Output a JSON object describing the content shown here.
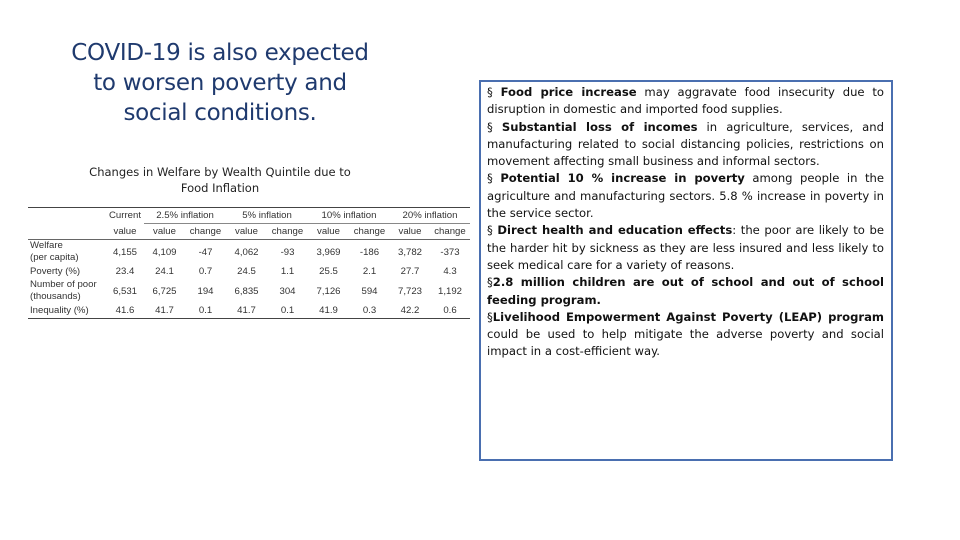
{
  "title_lines": [
    "COVID-19 is also expected",
    "to worsen poverty and",
    "social conditions."
  ],
  "table_caption_lines": [
    "Changes in Welfare by Wealth Quintile due to",
    "Food Inflation"
  ],
  "table": {
    "current_header": [
      "Current",
      "value"
    ],
    "group_headers": [
      "2.5% inflation",
      "5% inflation",
      "10% inflation",
      "20% inflation"
    ],
    "sub_headers": [
      "value",
      "change"
    ],
    "rows": [
      {
        "label": [
          "Welfare",
          "(per capita)"
        ],
        "cells": [
          "4,155",
          "4,109",
          "-47",
          "4,062",
          "-93",
          "3,969",
          "-186",
          "3,782",
          "-373"
        ]
      },
      {
        "label": [
          "Poverty (%)"
        ],
        "cells": [
          "23.4",
          "24.1",
          "0.7",
          "24.5",
          "1.1",
          "25.5",
          "2.1",
          "27.7",
          "4.3"
        ]
      },
      {
        "label": [
          "Number of poor",
          "(thousands)"
        ],
        "cells": [
          "6,531",
          "6,725",
          "194",
          "6,835",
          "304",
          "7,126",
          "594",
          "7,723",
          "1,192"
        ]
      },
      {
        "label": [
          "Inequality (%)"
        ],
        "cells": [
          "41.6",
          "41.7",
          "0.1",
          "41.7",
          "0.1",
          "41.9",
          "0.3",
          "42.2",
          "0.6"
        ]
      }
    ]
  },
  "bullets": [
    {
      "marker": "§",
      "bold": "Food price increase",
      "text": " may aggravate food insecurity due to disruption in domestic and imported food supplies."
    },
    {
      "marker": "§",
      "bold": "Substantial loss of incomes",
      "text": " in agriculture, services, and manufacturing related to social distancing policies, restrictions on movement affecting small business and informal sectors."
    },
    {
      "marker": "§",
      "bold": "Potential 10 % increase in poverty",
      "text": " among people in the agriculture and manufacturing sectors. 5.8 % increase in poverty in the service sector."
    },
    {
      "marker": "§",
      "bold": "Direct health and education effects",
      "text": ": the poor are likely to be the harder hit by sickness as they are less insured and less likely to seek medical care for a variety of reasons."
    },
    {
      "marker": "§",
      "bold": "2.8 million children are out of school and out of school feeding program.",
      "text": ""
    },
    {
      "marker": "§",
      "bold": "Livelihood Empowerment Against Poverty (LEAP) program",
      "text": " could be used to help mitigate the adverse poverty and social impact in a cost-efficient way."
    }
  ]
}
